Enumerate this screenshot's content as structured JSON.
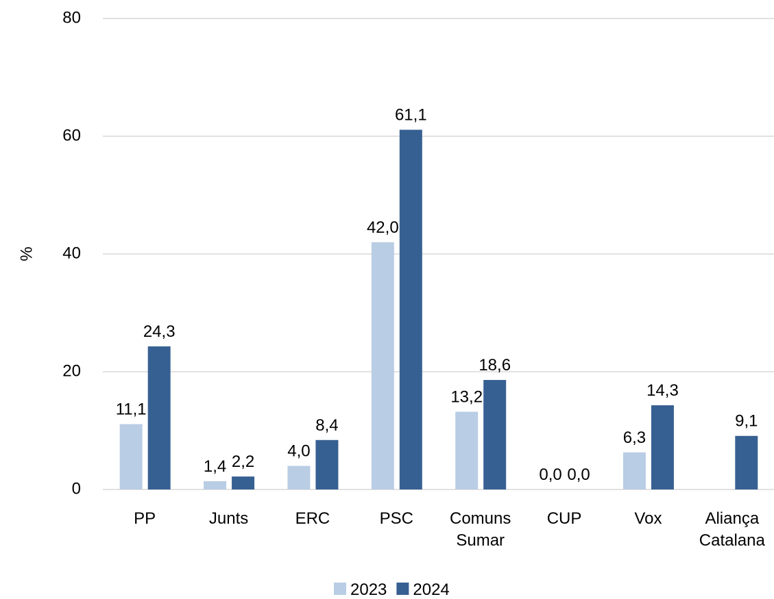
{
  "chart_data": {
    "type": "bar",
    "y_label": "%",
    "categories": [
      "PP",
      "Junts",
      "ERC",
      "PSC",
      "Comuns Sumar",
      "CUP",
      "Vox",
      "Aliança Catalana"
    ],
    "series": [
      {
        "name": "2023",
        "color": "#b9cde4",
        "values": [
          11.1,
          1.4,
          4.0,
          42.0,
          13.2,
          0.0,
          6.3,
          null
        ],
        "value_labels": [
          "11,1",
          "1,4",
          "4,0",
          "42,0",
          "13,2",
          "0,0",
          "6,3",
          null
        ]
      },
      {
        "name": "2024",
        "color": "#376092",
        "values": [
          24.3,
          2.2,
          8.4,
          61.1,
          18.6,
          0.0,
          14.3,
          9.1
        ],
        "value_labels": [
          "24,3",
          "2,2",
          "8,4",
          "61,1",
          "18,6",
          "0,0",
          "14,3",
          "9,1"
        ]
      }
    ],
    "ylim": [
      0,
      80
    ],
    "yticks": [
      0,
      20,
      40,
      60,
      80
    ],
    "grid": true,
    "legend": "bottom"
  }
}
